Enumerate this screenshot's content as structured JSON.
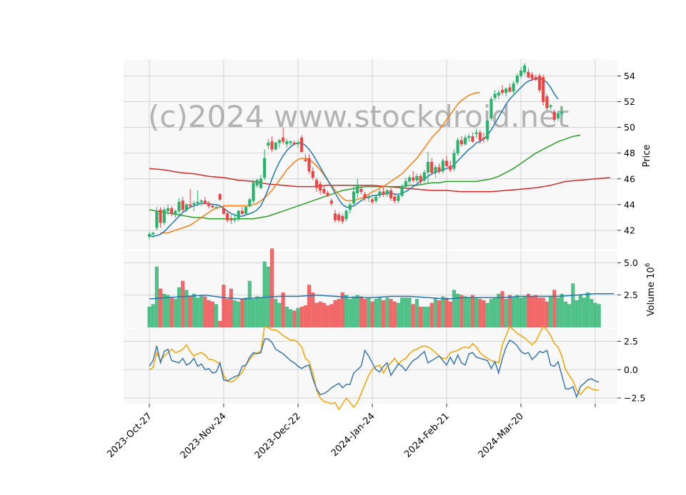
{
  "chart_data": {
    "type": "candlestick",
    "watermark": "(c)2024 www.stockdroid.net",
    "x_tick_labels": [
      "2023-Oct-27",
      "2023-Nov-24",
      "2023-Dec-22",
      "2024-Jan-24",
      "2024-Feb-21",
      "2024-Mar-20"
    ],
    "x_tick_indices": [
      0,
      20,
      40,
      60,
      80,
      100
    ],
    "panels": {
      "price": {
        "ylabel": "Price",
        "ylim": [
          40.5,
          55.3
        ],
        "ticks": [
          42,
          44,
          46,
          48,
          50,
          52,
          54
        ]
      },
      "volume": {
        "ylabel": "Volume",
        "multiplier_label": "10",
        "multiplier_exponent": "6",
        "ylim": [
          0,
          5.9
        ],
        "ticks": [
          2.5,
          5.0
        ],
        "tick_labels": [
          "2.5",
          "5.0"
        ]
      },
      "oscillator": {
        "ylim": [
          -3.0,
          3.6
        ],
        "ticks": [
          -2.5,
          0.0,
          2.5
        ],
        "tick_labels": [
          "−2.5",
          "0.0",
          "2.5"
        ]
      }
    },
    "colors": {
      "up": "#26b36b",
      "down": "#ef4444",
      "ma_blue": "#1f77b4",
      "ma_orange": "#ff7f0e",
      "ma_green": "#2ca02c",
      "ma_red": "#d62728",
      "osc_blue": "#3a78ad",
      "osc_orange": "#f5a300"
    },
    "candles": [
      {
        "o": 41.5,
        "h": 41.9,
        "l": 41.3,
        "c": 41.7
      },
      {
        "o": 41.7,
        "h": 41.9,
        "l": 41.5,
        "c": 41.8
      },
      {
        "o": 42.2,
        "h": 43.8,
        "l": 42.0,
        "c": 43.5
      },
      {
        "o": 43.6,
        "h": 43.8,
        "l": 42.2,
        "c": 42.6
      },
      {
        "o": 42.6,
        "h": 43.8,
        "l": 42.4,
        "c": 43.6
      },
      {
        "o": 43.5,
        "h": 44.0,
        "l": 43.2,
        "c": 43.7
      },
      {
        "o": 43.7,
        "h": 43.9,
        "l": 43.1,
        "c": 43.3
      },
      {
        "o": 43.3,
        "h": 43.6,
        "l": 43.0,
        "c": 43.5
      },
      {
        "o": 43.5,
        "h": 44.5,
        "l": 43.3,
        "c": 44.2
      },
      {
        "o": 44.3,
        "h": 44.6,
        "l": 43.4,
        "c": 43.6
      },
      {
        "o": 43.6,
        "h": 44.1,
        "l": 43.4,
        "c": 44.0
      },
      {
        "o": 44.0,
        "h": 45.2,
        "l": 43.8,
        "c": 43.9
      },
      {
        "o": 44.0,
        "h": 44.3,
        "l": 43.5,
        "c": 44.1
      },
      {
        "o": 44.1,
        "h": 45.1,
        "l": 43.9,
        "c": 44.2
      },
      {
        "o": 44.2,
        "h": 44.4,
        "l": 43.9,
        "c": 44.3
      },
      {
        "o": 44.3,
        "h": 44.6,
        "l": 44.0,
        "c": 44.1
      },
      {
        "o": 44.1,
        "h": 44.3,
        "l": 43.7,
        "c": 43.9
      },
      {
        "o": 43.9,
        "h": 44.1,
        "l": 43.7,
        "c": 43.8
      },
      {
        "o": 43.8,
        "h": 43.9,
        "l": 43.7,
        "c": 43.8
      },
      {
        "o": 44.8,
        "h": 44.9,
        "l": 44.3,
        "c": 44.4
      },
      {
        "o": 43.7,
        "h": 43.9,
        "l": 43.2,
        "c": 43.3
      },
      {
        "o": 43.3,
        "h": 43.5,
        "l": 42.6,
        "c": 42.8
      },
      {
        "o": 42.9,
        "h": 43.2,
        "l": 42.5,
        "c": 42.8
      },
      {
        "o": 42.8,
        "h": 43.3,
        "l": 42.6,
        "c": 42.9
      },
      {
        "o": 42.9,
        "h": 43.6,
        "l": 42.7,
        "c": 43.5
      },
      {
        "o": 43.5,
        "h": 43.8,
        "l": 43.2,
        "c": 43.3
      },
      {
        "o": 43.3,
        "h": 43.9,
        "l": 43.2,
        "c": 43.8
      },
      {
        "o": 43.9,
        "h": 44.5,
        "l": 43.8,
        "c": 44.4
      },
      {
        "o": 44.3,
        "h": 45.9,
        "l": 44.1,
        "c": 45.7
      },
      {
        "o": 45.5,
        "h": 46.0,
        "l": 45.3,
        "c": 45.9
      },
      {
        "o": 45.3,
        "h": 46.3,
        "l": 45.2,
        "c": 46.0
      },
      {
        "o": 46.1,
        "h": 48.3,
        "l": 45.9,
        "c": 47.6
      },
      {
        "o": 48.6,
        "h": 49.1,
        "l": 48.3,
        "c": 48.8
      },
      {
        "o": 48.9,
        "h": 49.3,
        "l": 48.1,
        "c": 48.3
      },
      {
        "o": 48.3,
        "h": 48.9,
        "l": 48.2,
        "c": 48.8
      },
      {
        "o": 48.8,
        "h": 49.1,
        "l": 48.4,
        "c": 49.0
      },
      {
        "o": 49.2,
        "h": 50.0,
        "l": 48.7,
        "c": 48.9
      },
      {
        "o": 48.7,
        "h": 49.1,
        "l": 48.4,
        "c": 48.9
      },
      {
        "o": 48.8,
        "h": 49.0,
        "l": 48.6,
        "c": 48.9
      },
      {
        "o": 48.8,
        "h": 49.0,
        "l": 48.6,
        "c": 48.7
      },
      {
        "o": 48.7,
        "h": 49.0,
        "l": 48.4,
        "c": 48.8
      },
      {
        "o": 49.2,
        "h": 49.4,
        "l": 48.1,
        "c": 48.1
      },
      {
        "o": 47.5,
        "h": 47.9,
        "l": 47.3,
        "c": 47.4
      },
      {
        "o": 47.6,
        "h": 47.9,
        "l": 46.4,
        "c": 46.6
      },
      {
        "o": 46.6,
        "h": 46.9,
        "l": 45.9,
        "c": 46.1
      },
      {
        "o": 45.9,
        "h": 46.1,
        "l": 45.0,
        "c": 45.3
      },
      {
        "o": 45.6,
        "h": 45.8,
        "l": 44.8,
        "c": 45.1
      },
      {
        "o": 45.2,
        "h": 45.4,
        "l": 44.8,
        "c": 44.9
      },
      {
        "o": 44.9,
        "h": 45.1,
        "l": 44.6,
        "c": 44.7
      },
      {
        "o": 44.3,
        "h": 44.5,
        "l": 43.9,
        "c": 44.1
      },
      {
        "o": 43.3,
        "h": 43.6,
        "l": 42.6,
        "c": 42.8
      },
      {
        "o": 43.2,
        "h": 43.4,
        "l": 42.6,
        "c": 42.8
      },
      {
        "o": 43.1,
        "h": 43.3,
        "l": 42.5,
        "c": 42.7
      },
      {
        "o": 42.9,
        "h": 43.6,
        "l": 42.7,
        "c": 43.5
      },
      {
        "o": 43.6,
        "h": 44.2,
        "l": 43.3,
        "c": 44.0
      },
      {
        "o": 44.1,
        "h": 45.5,
        "l": 43.9,
        "c": 45.0
      },
      {
        "o": 44.9,
        "h": 46.0,
        "l": 44.5,
        "c": 45.5
      },
      {
        "o": 45.2,
        "h": 45.5,
        "l": 44.8,
        "c": 45.0
      },
      {
        "o": 44.8,
        "h": 45.0,
        "l": 44.3,
        "c": 44.5
      },
      {
        "o": 44.5,
        "h": 44.8,
        "l": 44.2,
        "c": 44.6
      },
      {
        "o": 44.4,
        "h": 44.6,
        "l": 44.0,
        "c": 44.2
      },
      {
        "o": 44.3,
        "h": 44.8,
        "l": 44.1,
        "c": 44.6
      },
      {
        "o": 44.7,
        "h": 45.2,
        "l": 44.5,
        "c": 45.0
      },
      {
        "o": 45.0,
        "h": 45.4,
        "l": 44.6,
        "c": 44.8
      },
      {
        "o": 44.8,
        "h": 45.2,
        "l": 44.6,
        "c": 45.1
      },
      {
        "o": 45.1,
        "h": 45.3,
        "l": 44.3,
        "c": 44.5
      },
      {
        "o": 44.6,
        "h": 44.9,
        "l": 44.1,
        "c": 44.3
      },
      {
        "o": 44.3,
        "h": 44.8,
        "l": 44.1,
        "c": 44.7
      },
      {
        "o": 44.7,
        "h": 45.6,
        "l": 44.6,
        "c": 45.4
      },
      {
        "o": 45.5,
        "h": 46.1,
        "l": 45.3,
        "c": 45.8
      },
      {
        "o": 45.8,
        "h": 46.3,
        "l": 45.6,
        "c": 46.1
      },
      {
        "o": 46.1,
        "h": 46.6,
        "l": 45.7,
        "c": 45.9
      },
      {
        "o": 45.9,
        "h": 46.4,
        "l": 45.7,
        "c": 46.2
      },
      {
        "o": 46.2,
        "h": 46.4,
        "l": 45.6,
        "c": 45.8
      },
      {
        "o": 45.9,
        "h": 46.7,
        "l": 45.7,
        "c": 46.5
      },
      {
        "o": 46.5,
        "h": 48.1,
        "l": 45.7,
        "c": 47.3
      },
      {
        "o": 47.3,
        "h": 47.6,
        "l": 46.3,
        "c": 46.5
      },
      {
        "o": 46.5,
        "h": 47.1,
        "l": 46.1,
        "c": 46.9
      },
      {
        "o": 46.9,
        "h": 47.2,
        "l": 46.4,
        "c": 46.6
      },
      {
        "o": 46.6,
        "h": 47.6,
        "l": 46.4,
        "c": 47.4
      },
      {
        "o": 47.4,
        "h": 47.8,
        "l": 46.9,
        "c": 47.0
      },
      {
        "o": 47.0,
        "h": 47.4,
        "l": 46.5,
        "c": 46.7
      },
      {
        "o": 46.8,
        "h": 48.3,
        "l": 46.6,
        "c": 48.0
      },
      {
        "o": 48.0,
        "h": 49.2,
        "l": 47.8,
        "c": 49.0
      },
      {
        "o": 49.0,
        "h": 49.3,
        "l": 48.5,
        "c": 48.7
      },
      {
        "o": 48.7,
        "h": 49.4,
        "l": 48.6,
        "c": 49.2
      },
      {
        "o": 49.2,
        "h": 49.5,
        "l": 48.9,
        "c": 49.3
      },
      {
        "o": 49.3,
        "h": 49.6,
        "l": 48.8,
        "c": 48.9
      },
      {
        "o": 49.5,
        "h": 49.9,
        "l": 49.2,
        "c": 49.6
      },
      {
        "o": 49.6,
        "h": 49.8,
        "l": 48.7,
        "c": 49.0
      },
      {
        "o": 49.2,
        "h": 49.6,
        "l": 48.8,
        "c": 49.1
      },
      {
        "o": 49.1,
        "h": 50.6,
        "l": 48.9,
        "c": 50.5
      },
      {
        "o": 50.7,
        "h": 52.4,
        "l": 50.5,
        "c": 52.2
      },
      {
        "o": 52.3,
        "h": 52.9,
        "l": 52.1,
        "c": 52.6
      },
      {
        "o": 52.5,
        "h": 52.9,
        "l": 52.2,
        "c": 52.7
      },
      {
        "o": 52.9,
        "h": 53.3,
        "l": 52.5,
        "c": 52.7
      },
      {
        "o": 52.7,
        "h": 53.1,
        "l": 52.4,
        "c": 53.0
      },
      {
        "o": 53.1,
        "h": 53.4,
        "l": 52.7,
        "c": 52.8
      },
      {
        "o": 52.8,
        "h": 53.6,
        "l": 52.6,
        "c": 53.4
      },
      {
        "o": 53.5,
        "h": 54.2,
        "l": 53.3,
        "c": 54.0
      },
      {
        "o": 54.0,
        "h": 54.7,
        "l": 53.8,
        "c": 54.4
      },
      {
        "o": 54.3,
        "h": 55.0,
        "l": 54.1,
        "c": 54.8
      },
      {
        "o": 54.3,
        "h": 54.6,
        "l": 53.8,
        "c": 53.9
      },
      {
        "o": 54.1,
        "h": 54.3,
        "l": 53.6,
        "c": 53.8
      },
      {
        "o": 53.9,
        "h": 54.1,
        "l": 53.6,
        "c": 53.7
      },
      {
        "o": 54.0,
        "h": 54.2,
        "l": 52.7,
        "c": 52.9
      },
      {
        "o": 53.9,
        "h": 54.1,
        "l": 51.7,
        "c": 52.0
      },
      {
        "o": 52.4,
        "h": 52.6,
        "l": 51.3,
        "c": 51.5
      },
      {
        "o": 51.6,
        "h": 51.8,
        "l": 51.4,
        "c": 51.7
      },
      {
        "o": 51.2,
        "h": 51.4,
        "l": 50.4,
        "c": 50.6
      },
      {
        "o": 50.7,
        "h": 51.3,
        "l": 50.5,
        "c": 51.1
      },
      {
        "o": 51.1,
        "h": 51.6,
        "l": 50.9,
        "c": 51.2
      }
    ],
    "volume": [
      1.6,
      1.8,
      4.7,
      3.0,
      2.6,
      2.5,
      2.3,
      2.2,
      3.1,
      3.6,
      2.9,
      2.4,
      2.6,
      2.3,
      2.5,
      2.4,
      2.1,
      2.0,
      1.8,
      0.5,
      3.3,
      2.2,
      3.0,
      2.1,
      2.0,
      2.2,
      2.3,
      3.6,
      2.2,
      2.4,
      2.3,
      5.1,
      4.7,
      6.1,
      2.2,
      1.9,
      2.7,
      1.6,
      1.4,
      1.3,
      1.5,
      1.6,
      1.7,
      3.3,
      2.7,
      1.9,
      2.0,
      1.9,
      1.7,
      1.8,
      2.1,
      2.2,
      2.7,
      2.5,
      2.2,
      2.4,
      2.5,
      2.4,
      2.2,
      2.3,
      2.0,
      2.2,
      2.3,
      2.1,
      2.3,
      2.2,
      2.0,
      1.9,
      2.3,
      2.3,
      2.3,
      1.8,
      2.2,
      1.6,
      1.6,
      1.6,
      1.9,
      2.3,
      2.1,
      2.4,
      2.3,
      2.0,
      2.9,
      2.6,
      2.5,
      2.4,
      2.3,
      2.5,
      2.3,
      2.2,
      2.1,
      1.9,
      2.2,
      2.3,
      2.6,
      2.8,
      2.2,
      2.5,
      2.4,
      2.5,
      2.3,
      2.4,
      2.6,
      2.4,
      2.5,
      2.3,
      2.3,
      2.0,
      2.4,
      2.9,
      2.3,
      2.6,
      2.0,
      1.8,
      3.4,
      2.1,
      2.5,
      2.3,
      2.7,
      2.2,
      1.9,
      1.8
    ],
    "oscillator_blue": [
      0.3,
      0.8,
      2.1,
      0.6,
      1.6,
      1.8,
      0.8,
      0.7,
      0.6,
      1.0,
      0.4,
      0.6,
      1.0,
      0.3,
      0.5,
      0.0,
      0.1,
      -0.3,
      -0.2,
      0.6,
      -0.9,
      -1.0,
      -0.8,
      -0.6,
      -0.5,
      0.3,
      0.4,
      1.1,
      1.5,
      1.4,
      1.5,
      2.7,
      2.7,
      2.4,
      1.8,
      1.6,
      1.4,
      1.1,
      0.8,
      0.6,
      0.3,
      0.1,
      0.3,
      0.4,
      -0.8,
      -1.7,
      -2.2,
      -2.1,
      -1.9,
      -1.6,
      -1.4,
      -1.2,
      -1.6,
      -1.3,
      -1.3,
      -0.3,
      0.0,
      0.3,
      1.7,
      1.2,
      0.6,
      0.0,
      -0.2,
      0.3,
      0.6,
      -0.5,
      0.0,
      0.5,
      0.3,
      -0.1,
      0.4,
      0.8,
      1.0,
      1.3,
      1.6,
      0.6,
      0.8,
      1.0,
      1.2,
      0.8,
      0.4,
      1.1,
      0.5,
      1.3,
      0.6,
      0.4,
      1.4,
      1.5,
      1.1,
      1.0,
      0.9,
      0.8,
      0.1,
      0.7,
      -0.3,
      1.0,
      2.0,
      2.6,
      2.4,
      2.1,
      1.6,
      1.4,
      1.5,
      0.9,
      1.2,
      1.6,
      1.5,
      1.7,
      0.4,
      0.3,
      0.7,
      -0.5,
      -1.7,
      -1.7,
      -1.5,
      -2.4,
      -1.5,
      -1.2,
      -0.9,
      -0.8,
      -1.0,
      -1.1
    ],
    "oscillator_orange": [
      0.0,
      0.2,
      1.5,
      0.8,
      1.2,
      1.5,
      1.8,
      1.5,
      1.6,
      1.8,
      2.2,
      1.6,
      1.2,
      1.4,
      1.5,
      1.3,
      0.9,
      0.9,
      0.7,
      0.5,
      -0.5,
      -1.0,
      -1.1,
      -0.9,
      -0.6,
      -0.2,
      0.4,
      0.9,
      1.3,
      1.5,
      1.6,
      3.8,
      3.7,
      3.5,
      3.5,
      3.3,
      3.0,
      2.8,
      2.6,
      2.6,
      2.4,
      2.0,
      1.0,
      0.7,
      -0.3,
      -1.8,
      -2.5,
      -2.8,
      -2.9,
      -3.0,
      -2.9,
      -3.5,
      -3.0,
      -2.5,
      -2.9,
      -3.3,
      -2.9,
      -2.1,
      -1.3,
      -0.5,
      0.0,
      0.3,
      0.4,
      -0.3,
      0.3,
      0.6,
      1.0,
      0.5,
      0.8,
      1.0,
      1.4,
      1.7,
      1.8,
      2.0,
      2.1,
      2.0,
      1.8,
      1.5,
      1.2,
      1.0,
      1.0,
      1.5,
      1.6,
      1.7,
      1.9,
      2.0,
      1.9,
      2.3,
      2.0,
      1.5,
      1.2,
      1.0,
      0.8,
      0.7,
      0.6,
      2.2,
      3.0,
      3.8,
      3.5,
      3.2,
      3.0,
      2.8,
      2.5,
      2.2,
      2.5,
      3.2,
      3.8,
      3.5,
      3.0,
      2.3,
      2.0,
      1.2,
      0.0,
      -0.5,
      -1.0,
      -1.8,
      -2.2,
      -1.8,
      -1.5,
      -1.7,
      -1.8,
      -1.8
    ],
    "ma_blue": [
      41.6,
      41.5,
      41.6,
      41.7,
      41.9,
      42.2,
      42.5,
      42.8,
      43.1,
      43.4,
      43.6,
      43.8,
      43.9,
      44.0,
      44.1,
      44.1,
      44.1,
      44.0,
      44.0,
      43.9,
      43.7,
      43.5,
      43.3,
      43.2,
      43.1,
      43.1,
      43.2,
      43.3,
      43.4,
      43.6,
      43.9,
      44.5,
      45.2,
      46.0,
      46.7,
      47.3,
      47.8,
      48.2,
      48.5,
      48.7,
      48.8,
      48.8,
      48.6,
      48.3,
      47.9,
      47.4,
      46.9,
      46.4,
      45.9,
      45.4,
      44.9,
      44.4,
      44.0,
      43.8,
      43.8,
      43.9,
      44.1,
      44.3,
      44.5,
      44.6,
      44.7,
      44.7,
      44.8,
      44.8,
      44.9,
      44.9,
      44.8,
      44.8,
      44.9,
      45.0,
      45.2,
      45.4,
      45.6,
      45.8,
      46.0,
      46.2,
      46.4,
      46.5,
      46.6,
      46.7,
      46.8,
      46.9,
      47.1,
      47.4,
      47.7,
      48.0,
      48.3,
      48.5,
      48.8,
      48.9,
      49.1,
      49.4,
      49.8,
      50.3,
      50.8,
      51.3,
      51.8,
      52.2,
      52.5,
      52.8,
      53.1,
      53.4,
      53.6,
      53.7,
      53.8,
      53.8,
      53.7,
      53.5,
      53.1,
      52.6,
      52.2
    ],
    "ma_orange": [
      41.8,
      41.8,
      41.8,
      41.9,
      42.0,
      42.1,
      42.2,
      42.3,
      42.4,
      42.6,
      42.8,
      43.0,
      43.2,
      43.4,
      43.6,
      43.7,
      43.8,
      43.9,
      43.9,
      43.9,
      43.9,
      43.9,
      43.9,
      43.9,
      43.9,
      44.0,
      44.1,
      44.3,
      44.5,
      44.8,
      45.1,
      45.5,
      45.9,
      46.3,
      46.7,
      47.0,
      47.3,
      47.5,
      47.6,
      47.6,
      47.5,
      47.3,
      47.0,
      46.7,
      46.3,
      45.9,
      45.5,
      45.1,
      44.8,
      44.5,
      44.3,
      44.3,
      44.3,
      44.4,
      44.5,
      44.6,
      44.8,
      45.0,
      45.1,
      45.3,
      45.4,
      45.6,
      45.8,
      46.0,
      46.2,
      46.4,
      46.7,
      47.0,
      47.3,
      47.6,
      48.0,
      48.4,
      48.8,
      49.2,
      49.5,
      49.8,
      50.2,
      50.6,
      51.0,
      51.4,
      51.8,
      52.1,
      52.3,
      52.5,
      52.6,
      52.7,
      52.7
    ],
    "ma_orange_start": 3,
    "ma_green": [
      43.6,
      43.5,
      43.4,
      43.3,
      43.2,
      43.1,
      43.0,
      43.0,
      42.9,
      42.9,
      42.9,
      42.9,
      42.9,
      42.9,
      42.9,
      43.0,
      43.1,
      43.3,
      43.5,
      43.7,
      43.9,
      44.1,
      44.3,
      44.5,
      44.7,
      44.9,
      45.1,
      45.2,
      45.3,
      45.4,
      45.4,
      45.4,
      45.4,
      45.4,
      45.4,
      45.5,
      45.5,
      45.6,
      45.7,
      45.7,
      45.8,
      45.8,
      45.8,
      45.8,
      45.8,
      45.9,
      46.0,
      46.2,
      46.5,
      46.8,
      47.2,
      47.6,
      48.0,
      48.3,
      48.6,
      48.9,
      49.1,
      49.3,
      49.4
    ],
    "ma_green_step": 2,
    "ma_red": [
      46.8,
      46.7,
      46.5,
      46.4,
      46.2,
      46.1,
      45.9,
      45.8,
      45.6,
      45.5,
      45.4,
      45.4,
      45.5,
      45.5,
      45.5,
      45.5,
      45.4,
      45.3,
      45.2,
      45.1,
      45.1,
      45.0,
      45.0,
      45.0,
      45.1,
      45.2,
      45.3,
      45.5,
      45.8,
      45.9,
      46.0,
      46.1
    ],
    "ma_red_step": 4,
    "vol_ma": [
      2.2,
      2.3,
      2.4,
      2.5,
      2.3,
      2.2,
      2.3,
      2.4,
      2.4,
      2.5,
      2.4,
      2.3,
      2.3,
      2.4,
      2.4,
      2.3,
      2.2,
      2.3,
      2.3,
      2.3,
      2.4,
      2.4,
      2.4,
      2.5,
      2.6,
      2.6
    ]
  }
}
